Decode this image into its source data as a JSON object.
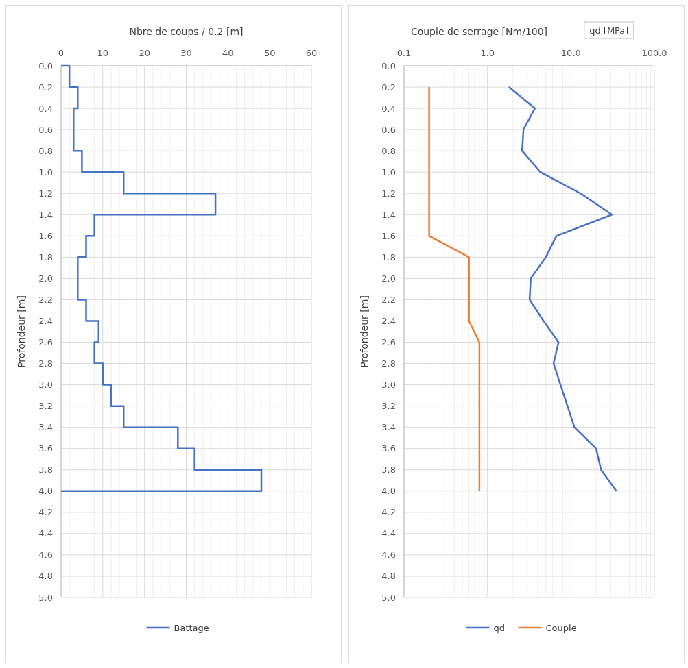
{
  "chart_data": [
    {
      "type": "line",
      "xlabel": "Nbre de coups / 0.2 [m]",
      "ylabel": "Profondeur [m]",
      "xlim": [
        0,
        60
      ],
      "xticks": [
        0,
        10,
        20,
        30,
        40,
        50,
        60
      ],
      "ylim": [
        5,
        0
      ],
      "yticks": [
        {
          "value": 0,
          "label": "0.0"
        },
        {
          "value": 0.2,
          "label": "0.2"
        },
        {
          "value": 0.4,
          "label": "0.4"
        },
        {
          "value": 0.6,
          "label": "0.6"
        },
        {
          "value": 0.8,
          "label": "0.8"
        },
        {
          "value": 1,
          "label": "1.0"
        },
        {
          "value": 1.2,
          "label": "1.2"
        },
        {
          "value": 1.4,
          "label": "1.4"
        },
        {
          "value": 1.6,
          "label": "1.6"
        },
        {
          "value": 1.8,
          "label": "1.8"
        },
        {
          "value": 2,
          "label": "2.0"
        },
        {
          "value": 2.2,
          "label": "2.2"
        },
        {
          "value": 2.4,
          "label": "2.4"
        },
        {
          "value": 2.6,
          "label": "2.6"
        },
        {
          "value": 2.8,
          "label": "2.8"
        },
        {
          "value": 3,
          "label": "3.0"
        },
        {
          "value": 3.2,
          "label": "3.2"
        },
        {
          "value": 3.4,
          "label": "3.4"
        },
        {
          "value": 3.6,
          "label": "3.6"
        },
        {
          "value": 3.8,
          "label": "3.8"
        },
        {
          "value": 4,
          "label": "4.0"
        },
        {
          "value": 4.2,
          "label": "4.2"
        },
        {
          "value": 4.4,
          "label": "4.4"
        },
        {
          "value": 4.6,
          "label": "4.6"
        },
        {
          "value": 4.8,
          "label": "4.8"
        },
        {
          "value": 5,
          "label": "5.0"
        }
      ],
      "grid": true,
      "legend": "bottom",
      "marker": "none",
      "line_style": "solid",
      "series": [
        {
          "name": "Battage",
          "color": "#4472c4",
          "x": [
            0,
            2,
            2,
            4,
            4,
            3,
            3,
            5,
            5,
            15,
            15,
            37,
            37,
            8,
            8,
            6,
            6,
            4,
            4,
            6,
            6,
            9,
            9,
            8,
            8,
            10,
            10,
            12,
            12,
            15,
            15,
            28,
            28,
            32,
            32,
            48,
            48,
            0
          ],
          "values": [
            0,
            0,
            0.2,
            0.2,
            0.4,
            0.4,
            0.8,
            0.8,
            1.0,
            1.0,
            1.2,
            1.2,
            1.4,
            1.4,
            1.6,
            1.6,
            1.8,
            1.8,
            2.2,
            2.2,
            2.4,
            2.4,
            2.6,
            2.6,
            2.8,
            2.8,
            3.0,
            3.0,
            3.2,
            3.2,
            3.4,
            3.4,
            3.6,
            3.6,
            3.8,
            3.8,
            4.0,
            4.0
          ]
        }
      ]
    },
    {
      "type": "line",
      "xlabel": "Couple de serrage [Nm/100]",
      "ylabel": "Profondeur [m]",
      "annotations": [
        "qd [MPa]"
      ],
      "log": "x",
      "xlim": [
        0.1,
        100
      ],
      "xticks": [
        {
          "value": 0.1,
          "label": "0.1"
        },
        {
          "value": 1,
          "label": "1.0"
        },
        {
          "value": 10,
          "label": "10.0"
        },
        {
          "value": 100,
          "label": "100.0"
        }
      ],
      "ylim": [
        5,
        0
      ],
      "yticks": [
        {
          "value": 0,
          "label": "0.0"
        },
        {
          "value": 0.2,
          "label": "0.2"
        },
        {
          "value": 0.4,
          "label": "0.4"
        },
        {
          "value": 0.6,
          "label": "0.6"
        },
        {
          "value": 0.8,
          "label": "0.8"
        },
        {
          "value": 1,
          "label": "1.0"
        },
        {
          "value": 1.2,
          "label": "1.2"
        },
        {
          "value": 1.4,
          "label": "1.4"
        },
        {
          "value": 1.6,
          "label": "1.6"
        },
        {
          "value": 1.8,
          "label": "1.8"
        },
        {
          "value": 2,
          "label": "2.0"
        },
        {
          "value": 2.2,
          "label": "2.2"
        },
        {
          "value": 2.4,
          "label": "2.4"
        },
        {
          "value": 2.6,
          "label": "2.6"
        },
        {
          "value": 2.8,
          "label": "2.8"
        },
        {
          "value": 3,
          "label": "3.0"
        },
        {
          "value": 3.2,
          "label": "3.2"
        },
        {
          "value": 3.4,
          "label": "3.4"
        },
        {
          "value": 3.6,
          "label": "3.6"
        },
        {
          "value": 3.8,
          "label": "3.8"
        },
        {
          "value": 4,
          "label": "4.0"
        },
        {
          "value": 4.2,
          "label": "4.2"
        },
        {
          "value": 4.4,
          "label": "4.4"
        },
        {
          "value": 4.6,
          "label": "4.6"
        },
        {
          "value": 4.8,
          "label": "4.8"
        },
        {
          "value": 5,
          "label": "5.0"
        }
      ],
      "grid": true,
      "legend": "bottom",
      "marker": "none",
      "line_style": "solid",
      "series": [
        {
          "name": "qd",
          "color": "#4472c4",
          "x": [
            1.8,
            3.7,
            2.7,
            2.6,
            4.3,
            13,
            31,
            6.7,
            5,
            3.3,
            3.2,
            4.7,
            7.1,
            6.2,
            7.5,
            9.1,
            11,
            20,
            23,
            35
          ],
          "values": [
            0.2,
            0.4,
            0.6,
            0.8,
            1.0,
            1.2,
            1.4,
            1.6,
            1.8,
            2.0,
            2.2,
            2.4,
            2.6,
            2.8,
            3.0,
            3.2,
            3.4,
            3.6,
            3.8,
            4.0
          ]
        },
        {
          "name": "Couple",
          "color": "#ed7d31",
          "x": [
            0.2,
            0.2,
            0.2,
            0.2,
            0.2,
            0.2,
            0.2,
            0.2,
            0.6,
            0.6,
            0.6,
            0.6,
            0.8,
            0.8,
            0.8,
            0.8,
            0.8,
            0.8,
            0.8,
            0.8
          ],
          "values": [
            0.2,
            0.4,
            0.6,
            0.8,
            1.0,
            1.2,
            1.4,
            1.6,
            1.8,
            2.0,
            2.2,
            2.4,
            2.6,
            2.8,
            3.0,
            3.2,
            3.4,
            3.6,
            3.8,
            4.0
          ]
        }
      ]
    }
  ]
}
